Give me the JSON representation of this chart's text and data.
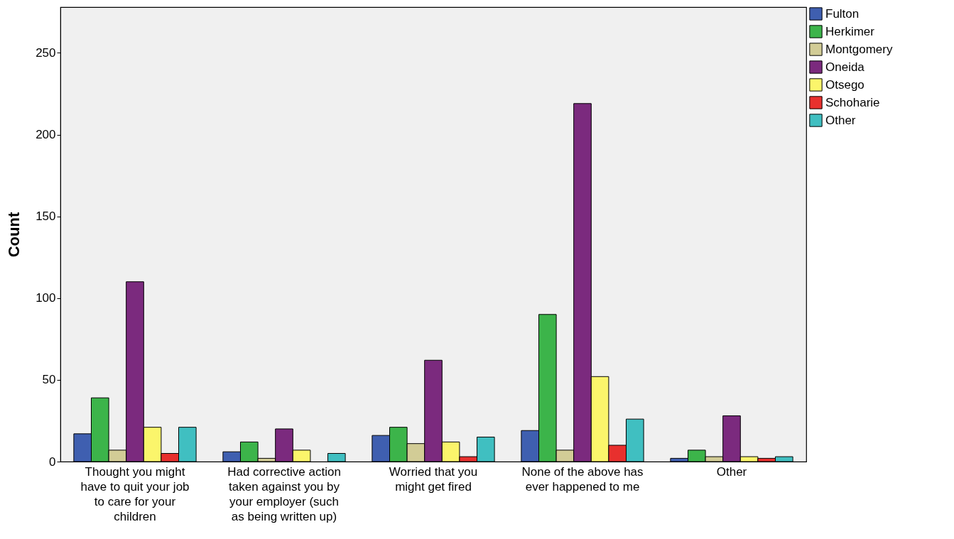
{
  "chart_data": {
    "type": "bar",
    "ylabel": "Count",
    "categories": [
      "Thought you might have to quit your job to care for your children",
      "Had corrective action taken against you by your employer (such as being written up)",
      "Worried that you might get fired",
      "None of the above has ever happened to me",
      "Other"
    ],
    "series": [
      {
        "name": "Fulton",
        "color": "#3f5fb0",
        "values": [
          17,
          6,
          16,
          19,
          2
        ]
      },
      {
        "name": "Herkimer",
        "color": "#3cb44a",
        "values": [
          39,
          12,
          21,
          90,
          7
        ]
      },
      {
        "name": "Montgomery",
        "color": "#d2cc96",
        "values": [
          7,
          2,
          11,
          7,
          3
        ]
      },
      {
        "name": "Oneida",
        "color": "#7b2a7e",
        "values": [
          110,
          20,
          62,
          219,
          28
        ]
      },
      {
        "name": "Otsego",
        "color": "#fbf56b",
        "values": [
          21,
          7,
          12,
          52,
          3
        ]
      },
      {
        "name": "Schoharie",
        "color": "#e8302e",
        "values": [
          5,
          null,
          3,
          10,
          2
        ]
      },
      {
        "name": "Other",
        "color": "#40bfc1",
        "values": [
          21,
          5,
          15,
          26,
          3
        ]
      }
    ],
    "ylim": [
      0,
      278
    ],
    "yticks": [
      0,
      50,
      100,
      150,
      200,
      250
    ],
    "grid": false,
    "legend": "top right"
  }
}
